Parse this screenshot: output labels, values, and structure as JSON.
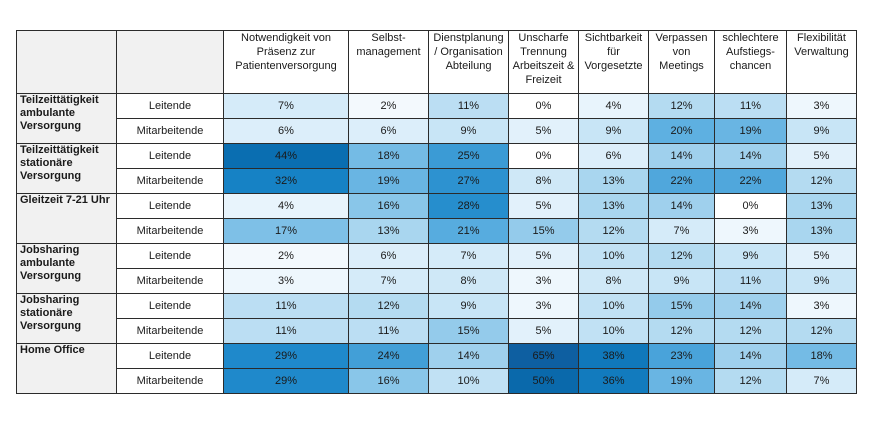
{
  "chart_data": {
    "type": "heatmap",
    "columns": [
      "Notwendigkeit von Präsenz zur Patientenversorgung",
      "Selbst-management",
      "Dienstplanung / Organisation Abteilung",
      "Unscharfe Trennung Arbeitszeit & Freizeit",
      "Sichtbarkeit für Vorgesetzte",
      "Verpassen von Meetings",
      "schlechtere Aufstiegs-chancen",
      "Flexibilität Verwaltung"
    ],
    "groups": [
      "Teilzeittätigkeit ambulante Versorgung",
      "Teilzeittätigkeit stationäre Versorgung",
      "Gleitzeit 7-21 Uhr",
      "Jobsharing ambulante Versorgung",
      "Jobsharing stationäre Versorgung",
      "Home Office"
    ],
    "roles": [
      "Leitende",
      "Mitarbeitende"
    ],
    "values": [
      [
        7,
        2,
        11,
        0,
        4,
        12,
        11,
        3
      ],
      [
        6,
        6,
        9,
        5,
        9,
        20,
        19,
        9
      ],
      [
        44,
        18,
        25,
        0,
        6,
        14,
        14,
        5
      ],
      [
        32,
        19,
        27,
        8,
        13,
        22,
        22,
        12
      ],
      [
        4,
        16,
        28,
        5,
        13,
        14,
        0,
        13
      ],
      [
        17,
        13,
        21,
        15,
        12,
        7,
        3,
        13
      ],
      [
        2,
        6,
        7,
        5,
        10,
        12,
        9,
        5
      ],
      [
        3,
        7,
        8,
        3,
        8,
        9,
        11,
        9
      ],
      [
        11,
        12,
        9,
        3,
        10,
        15,
        14,
        3
      ],
      [
        11,
        11,
        15,
        5,
        10,
        12,
        12,
        12
      ],
      [
        29,
        24,
        14,
        65,
        38,
        23,
        14,
        18
      ],
      [
        29,
        16,
        10,
        50,
        36,
        19,
        12,
        7
      ]
    ],
    "unit": "%"
  }
}
